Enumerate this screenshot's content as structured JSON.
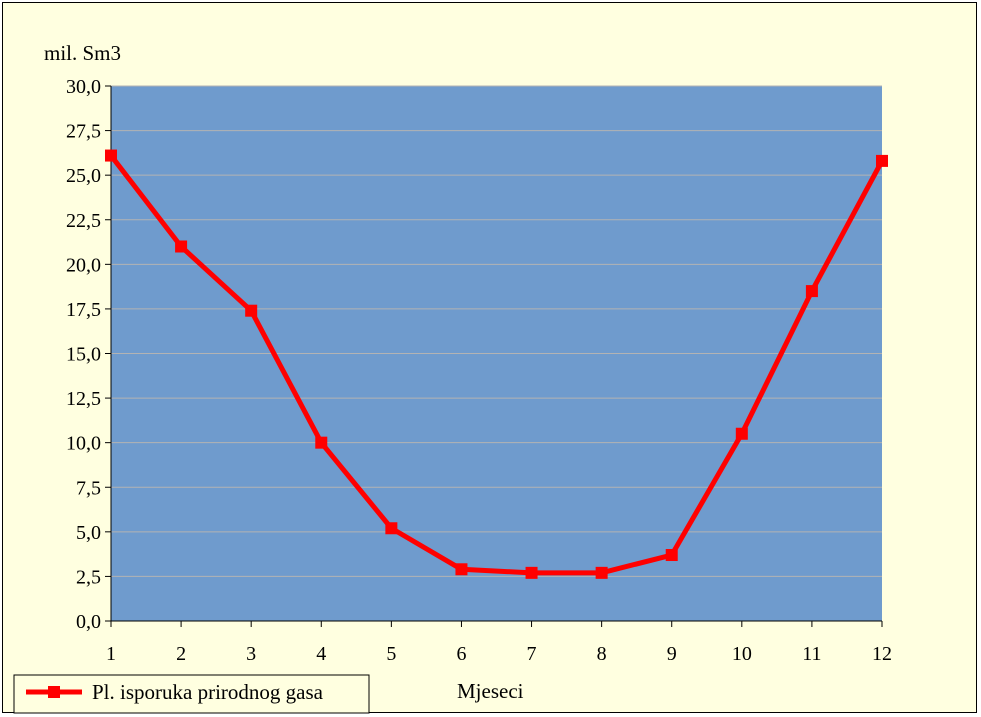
{
  "chart_data": {
    "type": "line",
    "ylabel": "mil. Sm3",
    "xlabel": "Mjeseci",
    "ylim": [
      0,
      30
    ],
    "ytick_step": 2.5,
    "yticks": [
      "0,0",
      "2,5",
      "5,0",
      "7,5",
      "10,0",
      "12,5",
      "15,0",
      "17,5",
      "20,0",
      "22,5",
      "25,0",
      "27,5",
      "30,0"
    ],
    "categories": [
      "1",
      "2",
      "3",
      "4",
      "5",
      "6",
      "7",
      "8",
      "9",
      "10",
      "11",
      "12"
    ],
    "series": [
      {
        "name": "Pl. isporuka prirodnog gasa",
        "color": "#ff0000",
        "values": [
          26.1,
          21.0,
          17.4,
          10.0,
          5.2,
          2.9,
          2.7,
          2.7,
          3.7,
          10.5,
          18.5,
          25.8
        ]
      }
    ],
    "grid": true,
    "legend": "bottom-left",
    "plot_bg": "#6f9bcd",
    "chart_bg": "#ffffe0"
  }
}
